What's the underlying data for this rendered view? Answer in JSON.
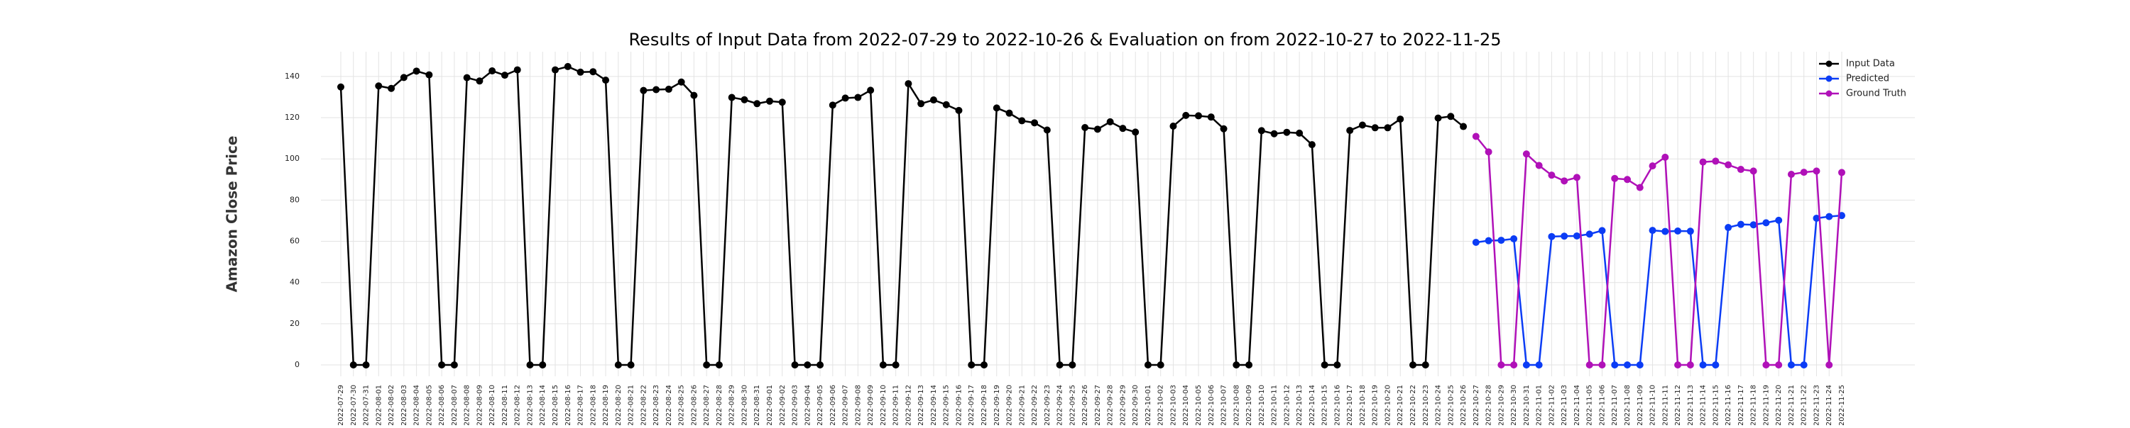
{
  "chart_data": {
    "type": "line",
    "title": "Results of Input Data from 2022-07-29 to 2022-10-26 & Evaluation on from 2022-10-27 to 2022-11-25",
    "y_label": "Amazon Close Price",
    "categories": [
      "2022-07-29",
      "2022-07-30",
      "2022-07-31",
      "2022-08-01",
      "2022-08-02",
      "2022-08-03",
      "2022-08-04",
      "2022-08-05",
      "2022-08-06",
      "2022-08-07",
      "2022-08-08",
      "2022-08-09",
      "2022-08-10",
      "2022-08-11",
      "2022-08-12",
      "2022-08-13",
      "2022-08-14",
      "2022-08-15",
      "2022-08-16",
      "2022-08-17",
      "2022-08-18",
      "2022-08-19",
      "2022-08-20",
      "2022-08-21",
      "2022-08-22",
      "2022-08-23",
      "2022-08-24",
      "2022-08-25",
      "2022-08-26",
      "2022-08-27",
      "2022-08-28",
      "2022-08-29",
      "2022-08-30",
      "2022-08-31",
      "2022-09-01",
      "2022-09-02",
      "2022-09-03",
      "2022-09-04",
      "2022-09-05",
      "2022-09-06",
      "2022-09-07",
      "2022-09-08",
      "2022-09-09",
      "2022-09-10",
      "2022-09-11",
      "2022-09-12",
      "2022-09-13",
      "2022-09-14",
      "2022-09-15",
      "2022-09-16",
      "2022-09-17",
      "2022-09-18",
      "2022-09-19",
      "2022-09-20",
      "2022-09-21",
      "2022-09-22",
      "2022-09-23",
      "2022-09-24",
      "2022-09-25",
      "2022-09-26",
      "2022-09-27",
      "2022-09-28",
      "2022-09-29",
      "2022-09-30",
      "2022-10-01",
      "2022-10-02",
      "2022-10-03",
      "2022-10-04",
      "2022-10-05",
      "2022-10-06",
      "2022-10-07",
      "2022-10-08",
      "2022-10-09",
      "2022-10-10",
      "2022-10-11",
      "2022-10-12",
      "2022-10-13",
      "2022-10-14",
      "2022-10-15",
      "2022-10-16",
      "2022-10-17",
      "2022-10-18",
      "2022-10-19",
      "2022-10-20",
      "2022-10-21",
      "2022-10-22",
      "2022-10-23",
      "2022-10-24",
      "2022-10-25",
      "2022-10-26",
      "2022-10-27",
      "2022-10-28",
      "2022-10-29",
      "2022-10-30",
      "2022-10-31",
      "2022-11-01",
      "2022-11-02",
      "2022-11-03",
      "2022-11-04",
      "2022-11-05",
      "2022-11-06",
      "2022-11-07",
      "2022-11-08",
      "2022-11-09",
      "2022-11-10",
      "2022-11-11",
      "2022-11-12",
      "2022-11-13",
      "2022-11-14",
      "2022-11-15",
      "2022-11-16",
      "2022-11-17",
      "2022-11-18",
      "2022-11-19",
      "2022-11-20",
      "2022-11-21",
      "2022-11-22",
      "2022-11-23",
      "2022-11-24",
      "2022-11-25"
    ],
    "series": [
      {
        "name": "Input Data",
        "color": "#000000",
        "values": [
          134.9,
          0,
          0,
          135.4,
          134.2,
          139.5,
          142.6,
          140.8,
          0,
          0,
          139.4,
          137.8,
          142.7,
          140.6,
          143.2,
          0,
          0,
          143.2,
          144.8,
          142.1,
          142.3,
          138.2,
          0,
          0,
          133.2,
          133.6,
          133.8,
          137.3,
          130.8,
          0,
          0,
          129.8,
          128.7,
          126.8,
          128.0,
          127.5,
          0,
          0,
          0,
          126.1,
          129.5,
          129.8,
          133.3,
          0,
          0,
          136.5,
          126.8,
          128.6,
          126.3,
          123.5,
          0,
          0,
          124.7,
          122.2,
          118.5,
          117.5,
          114.0,
          0,
          0,
          115.2,
          114.4,
          118.0,
          114.8,
          113.0,
          0,
          0,
          115.9,
          121.1,
          120.9,
          120.3,
          114.6,
          0,
          0,
          113.7,
          112.2,
          112.9,
          112.5,
          106.9,
          0,
          0,
          113.8,
          116.4,
          115.1,
          115.1,
          119.3,
          0,
          0,
          119.8,
          120.6,
          115.7,
          null,
          null,
          null,
          null,
          null,
          null,
          null,
          null,
          null,
          null,
          null,
          null,
          null,
          null,
          null,
          null,
          null,
          null,
          null,
          null,
          null,
          null,
          null,
          null,
          null,
          null,
          null,
          null,
          null,
          null
        ]
      },
      {
        "name": "Predicted",
        "color": "#0b3cf5",
        "values": [
          null,
          null,
          null,
          null,
          null,
          null,
          null,
          null,
          null,
          null,
          null,
          null,
          null,
          null,
          null,
          null,
          null,
          null,
          null,
          null,
          null,
          null,
          null,
          null,
          null,
          null,
          null,
          null,
          null,
          null,
          null,
          null,
          null,
          null,
          null,
          null,
          null,
          null,
          null,
          null,
          null,
          null,
          null,
          null,
          null,
          null,
          null,
          null,
          null,
          null,
          null,
          null,
          null,
          null,
          null,
          null,
          null,
          null,
          null,
          null,
          null,
          null,
          null,
          null,
          null,
          null,
          null,
          null,
          null,
          null,
          null,
          null,
          null,
          null,
          null,
          null,
          null,
          null,
          null,
          null,
          null,
          null,
          null,
          null,
          null,
          null,
          null,
          null,
          null,
          null,
          59.5,
          60.3,
          60.5,
          61.2,
          0,
          0,
          62.3,
          62.5,
          62.6,
          63.5,
          65.2,
          0,
          0,
          0,
          65.3,
          64.8,
          65.0,
          64.9,
          0,
          0,
          66.7,
          68.2,
          68.0,
          69.0,
          70.2,
          0,
          0,
          71.2,
          72.0,
          72.5
        ]
      },
      {
        "name": "Ground Truth",
        "color": "#b011b8",
        "values": [
          null,
          null,
          null,
          null,
          null,
          null,
          null,
          null,
          null,
          null,
          null,
          null,
          null,
          null,
          null,
          null,
          null,
          null,
          null,
          null,
          null,
          null,
          null,
          null,
          null,
          null,
          null,
          null,
          null,
          null,
          null,
          null,
          null,
          null,
          null,
          null,
          null,
          null,
          null,
          null,
          null,
          null,
          null,
          null,
          null,
          null,
          null,
          null,
          null,
          null,
          null,
          null,
          null,
          null,
          null,
          null,
          null,
          null,
          null,
          null,
          null,
          null,
          null,
          null,
          null,
          null,
          null,
          null,
          null,
          null,
          null,
          null,
          null,
          null,
          null,
          null,
          null,
          null,
          null,
          null,
          null,
          null,
          null,
          null,
          null,
          null,
          null,
          null,
          null,
          null,
          110.9,
          103.4,
          0,
          0,
          102.4,
          96.8,
          92.1,
          89.3,
          91.0,
          0,
          0,
          90.5,
          90.0,
          86.1,
          96.6,
          100.8,
          0,
          0,
          98.5,
          98.9,
          97.1,
          94.9,
          94.1,
          0,
          0,
          92.5,
          93.5,
          94.1,
          0,
          93.4
        ]
      }
    ],
    "ylim": [
      -5.5,
      152
    ],
    "yticks": [
      0,
      20,
      40,
      60,
      80,
      100,
      120,
      140
    ],
    "grid": true,
    "legend": "upper right"
  }
}
